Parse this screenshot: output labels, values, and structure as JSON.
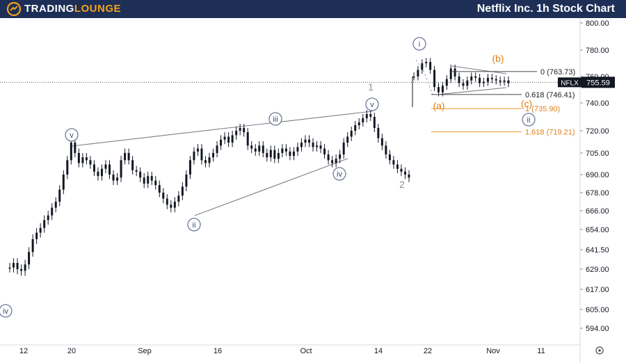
{
  "header": {
    "logo_part1": "TRADING",
    "logo_part2": "LOUNGE",
    "title": "Netflix Inc. 1h Stock Chart"
  },
  "colors": {
    "header_bg": "#1d2f56",
    "accent": "#f4a11d",
    "wave_line": "#7a7f8a",
    "fib_orange": "#f39a2a",
    "fib_black": "#444444",
    "candle": "#131722"
  },
  "chart_data": {
    "type": "candlestick",
    "symbol": "NFLX",
    "last_price": "755.59",
    "ylim": [
      587,
      808
    ],
    "y_ticks": [
      "800.00",
      "780.00",
      "760.00",
      "740.00",
      "720.00",
      "705.00",
      "690.00",
      "678.00",
      "666.00",
      "654.00",
      "641.50",
      "629.00",
      "617.00",
      "605.00",
      "594.00"
    ],
    "x_ticks": [
      "12",
      "20",
      "Sep",
      "16",
      "Oct",
      "14",
      "22",
      "Nov",
      "11"
    ],
    "fib_levels": [
      {
        "label": "0 (763.73)",
        "value": 763.73,
        "color": "black"
      },
      {
        "label": "0.618 (746.41)",
        "value": 746.41,
        "color": "black"
      },
      {
        "label": "1 (735.90)",
        "value": 735.9,
        "color": "orange"
      },
      {
        "label": "1.618 (719.21)",
        "value": 719.21,
        "color": "orange"
      }
    ],
    "wave_labels": [
      {
        "text": "iv",
        "circled": true,
        "color": "blue"
      },
      {
        "text": "v",
        "circled": true,
        "color": "blue"
      },
      {
        "text": "ii",
        "circled": true,
        "color": "blue"
      },
      {
        "text": "iii",
        "circled": true,
        "color": "blue"
      },
      {
        "text": "iv",
        "circled": true,
        "color": "blue"
      },
      {
        "text": "v",
        "circled": true,
        "color": "blue"
      },
      {
        "text": "1",
        "circled": false,
        "color": "gray"
      },
      {
        "text": "2",
        "circled": false,
        "color": "gray"
      },
      {
        "text": "i",
        "circled": true,
        "color": "blue"
      },
      {
        "text": "ii",
        "circled": true,
        "color": "blue"
      },
      {
        "text": "(a)",
        "circled": false,
        "color": "orange"
      },
      {
        "text": "(b)",
        "circled": false,
        "color": "orange"
      },
      {
        "text": "(c)",
        "circled": false,
        "color": "orange"
      }
    ],
    "series": [
      {
        "segment": "aug",
        "values": [
          630,
          633,
          629,
          628,
          632,
          640,
          648,
          652,
          655,
          660,
          663,
          668,
          672,
          680,
          690,
          700,
          712,
          705,
          698,
          702,
          700,
          697,
          692,
          689,
          694,
          697,
          690,
          686,
          688,
          700,
          705,
          700,
          693,
          692,
          688,
          684,
          689,
          686,
          683,
          678,
          674,
          670,
          668,
          672,
          676,
          682,
          690,
          700,
          706,
          708,
          700,
          698,
          702,
          705,
          710,
          714,
          716,
          712,
          717,
          720,
          722,
          719,
          710,
          708,
          706,
          710,
          705,
          702,
          707,
          701,
          705,
          708,
          706,
          703,
          706,
          709,
          712,
          714,
          712,
          709,
          710,
          708,
          704,
          700,
          698,
          701,
          704,
          712,
          716,
          720,
          724,
          726,
          729,
          732,
          730,
          722,
          715,
          710,
          704,
          700,
          697,
          694,
          692,
          690,
          688
        ]
      },
      {
        "segment": "nov",
        "values": [
          760,
          765,
          770,
          771,
          765,
          752,
          748,
          753,
          758,
          766,
          760,
          755,
          753,
          757,
          760,
          759,
          755,
          756,
          759,
          758,
          757,
          756,
          757,
          755
        ]
      }
    ]
  }
}
